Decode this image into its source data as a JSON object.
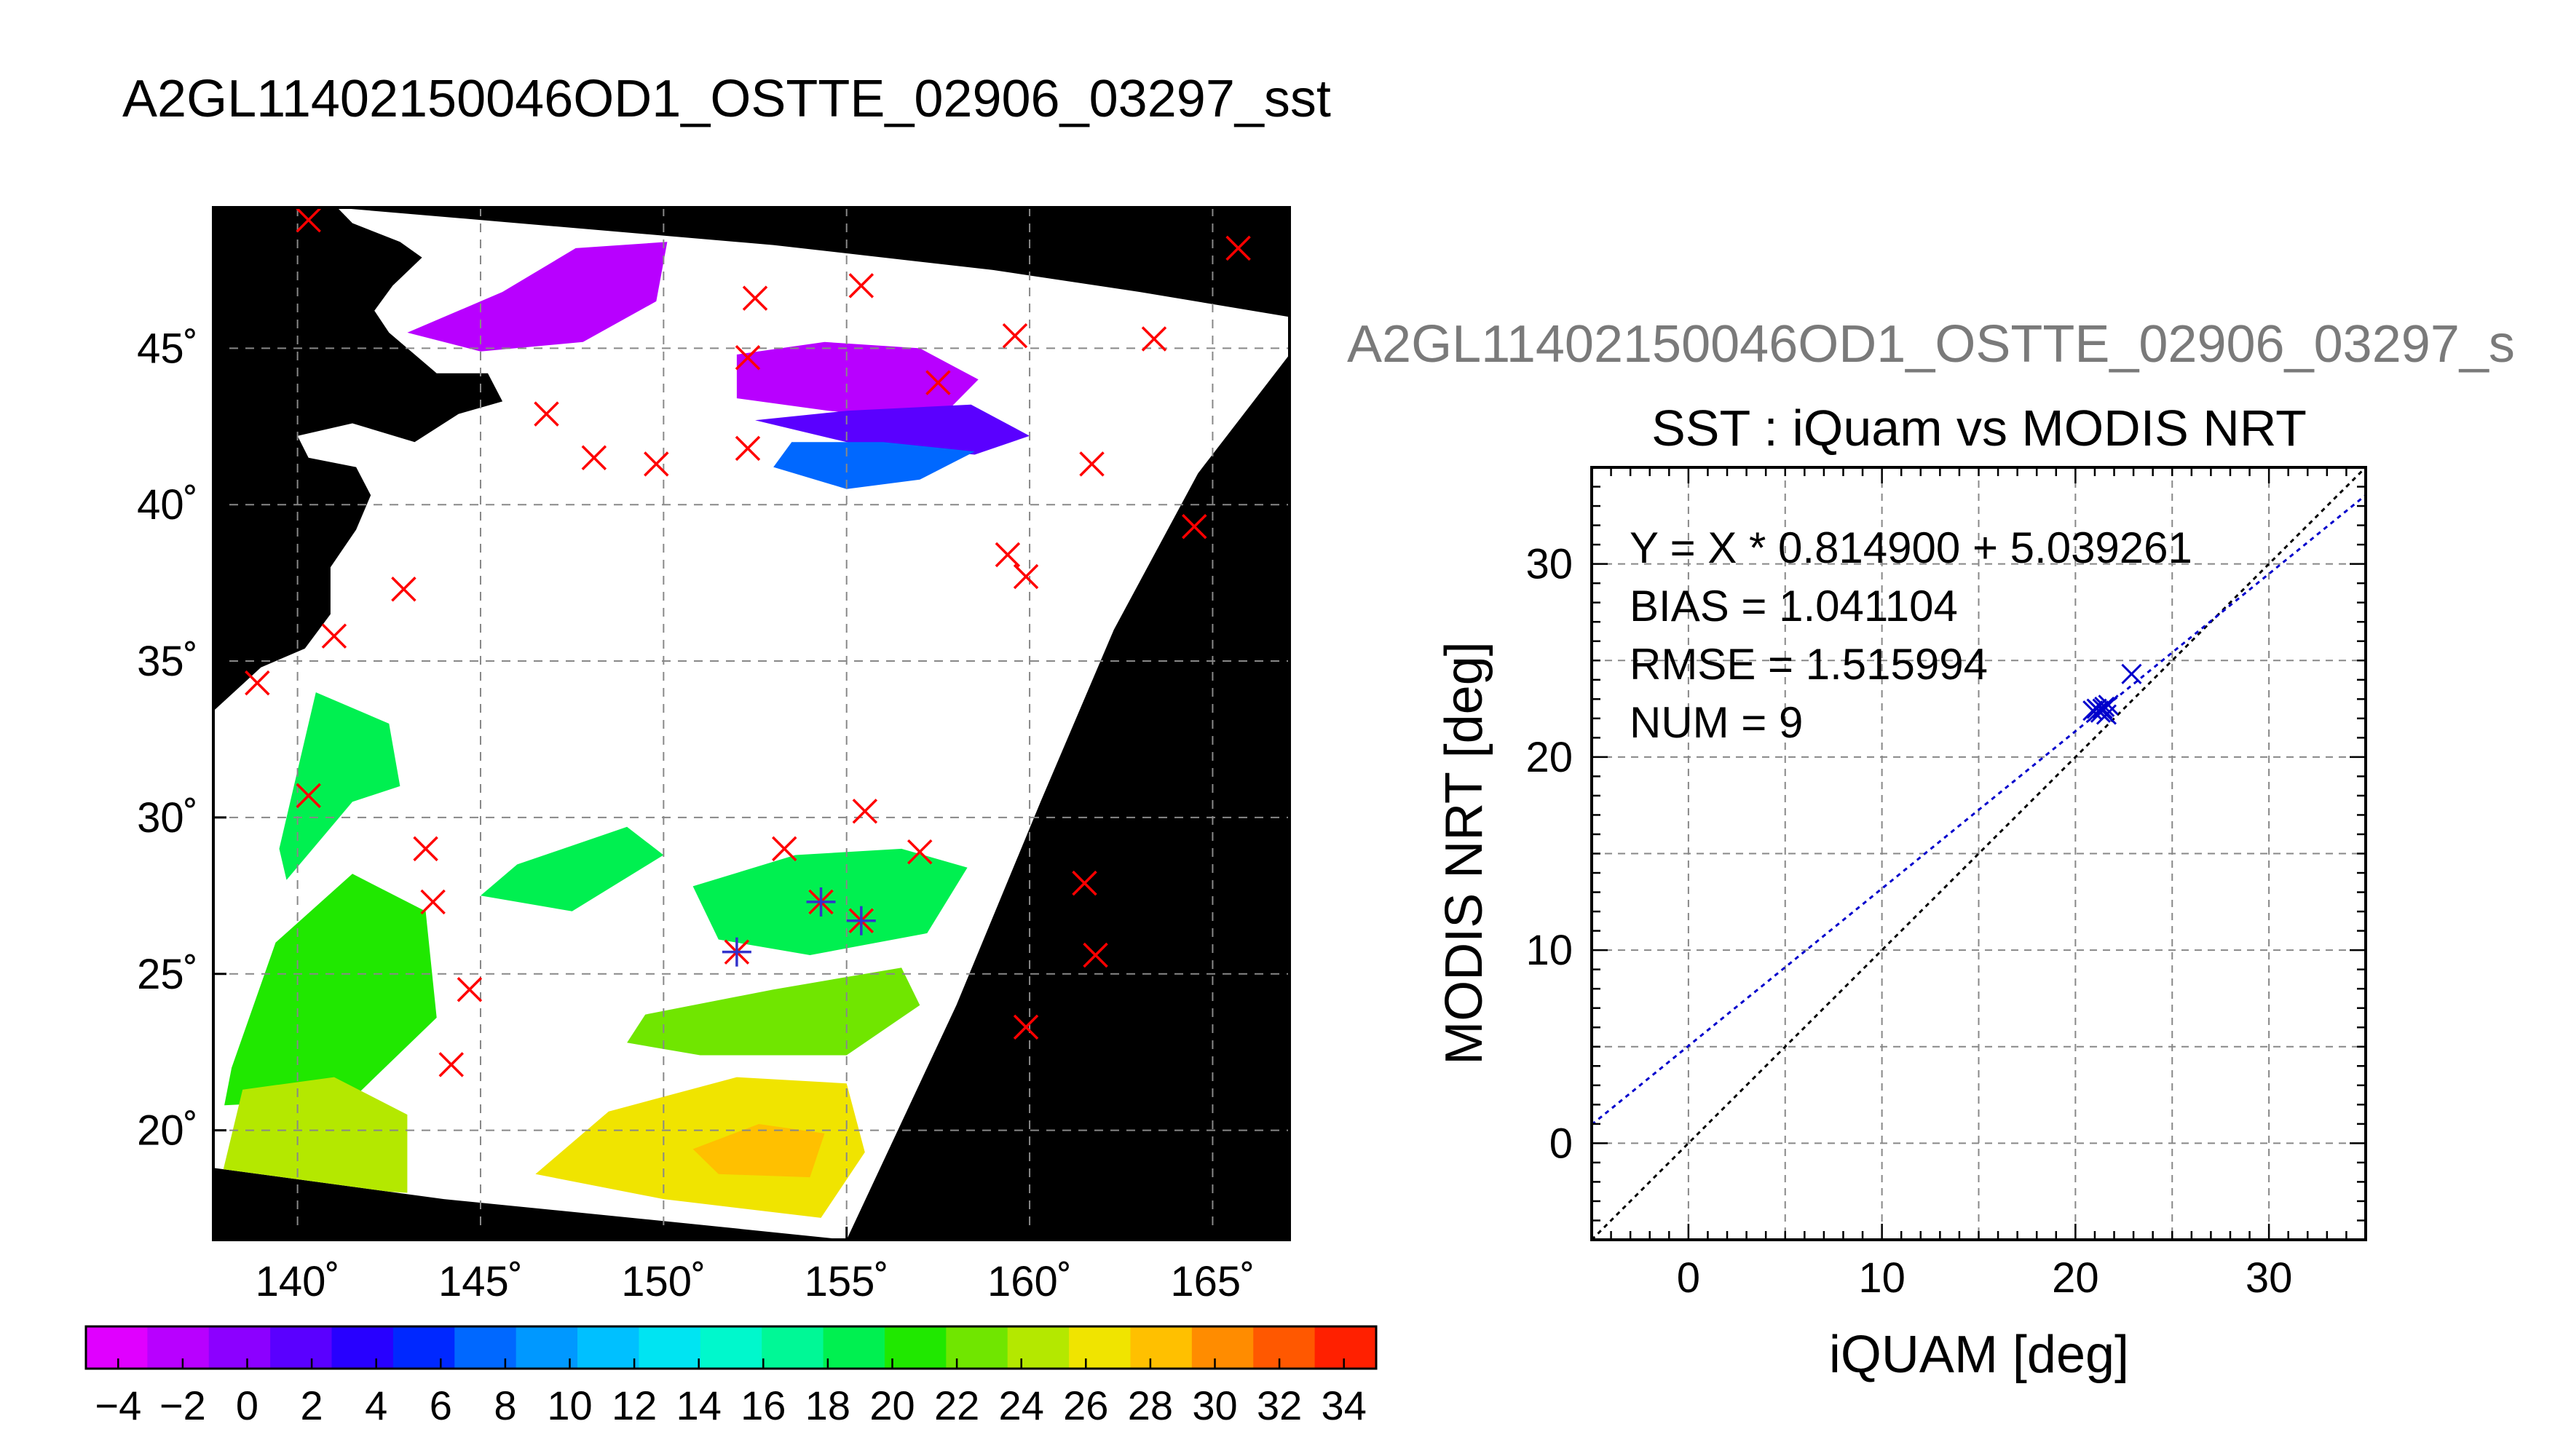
{
  "main_title": "A2GL11402150046OD1_OSTTE_02906_03297_sst",
  "secondary_title": "A2GL11402150046OD1_OSTTE_02906_03297_s",
  "colors": {
    "map_background": "#000000",
    "land": "#000000",
    "cloud": "#ffffff",
    "match_marker": "#ff0000",
    "valid_marker": "#3333cc",
    "fit_line": "#0000cc",
    "identity_line": "#000000",
    "grid": "#888888",
    "scatter_marker": "#0000cc"
  },
  "chart_data": [
    {
      "type": "heatmap",
      "title": "A2GL11402150046OD1_OSTTE_02906_03297_sst",
      "x_ticks": [
        140,
        145,
        150,
        155,
        160,
        165
      ],
      "x_tick_labels": [
        "140˚",
        "145˚",
        "150˚",
        "155˚",
        "160˚",
        "165˚"
      ],
      "y_ticks": [
        20,
        25,
        30,
        35,
        40,
        45
      ],
      "y_tick_labels": [
        "20˚",
        "25˚",
        "30˚",
        "35˚",
        "40˚",
        "45˚"
      ],
      "xlim": [
        137.7,
        167.1
      ],
      "ylim": [
        16.5,
        49.5
      ],
      "grid": true,
      "red_x_markers": [
        [
          140.3,
          49.1
        ],
        [
          165.7,
          48.2
        ],
        [
          155.4,
          47.0
        ],
        [
          152.5,
          46.6
        ],
        [
          159.6,
          45.4
        ],
        [
          163.4,
          45.3
        ],
        [
          152.3,
          44.7
        ],
        [
          157.5,
          43.9
        ],
        [
          146.8,
          42.9
        ],
        [
          148.1,
          41.5
        ],
        [
          149.8,
          41.3
        ],
        [
          152.3,
          41.8
        ],
        [
          161.7,
          41.3
        ],
        [
          164.5,
          39.3
        ],
        [
          159.4,
          38.4
        ],
        [
          159.9,
          37.7
        ],
        [
          142.9,
          37.3
        ],
        [
          141.0,
          35.8
        ],
        [
          138.9,
          34.3
        ],
        [
          140.3,
          30.7
        ],
        [
          143.5,
          29.0
        ],
        [
          143.7,
          27.3
        ],
        [
          153.3,
          29.0
        ],
        [
          155.5,
          30.2
        ],
        [
          157.0,
          28.9
        ],
        [
          161.5,
          27.9
        ],
        [
          161.8,
          25.6
        ],
        [
          144.7,
          24.5
        ],
        [
          159.9,
          23.3
        ],
        [
          144.2,
          22.1
        ]
      ],
      "valid_markers": [
        [
          152.0,
          25.7
        ],
        [
          154.3,
          27.3
        ],
        [
          155.4,
          26.7
        ]
      ],
      "colorbar": {
        "min": -5,
        "max": 35,
        "step": 2,
        "tick_values": [
          -4,
          -2,
          0,
          2,
          4,
          6,
          8,
          10,
          12,
          14,
          16,
          18,
          20,
          22,
          24,
          26,
          28,
          30,
          32,
          34
        ],
        "tick_labels": [
          "−4",
          "−2",
          "0",
          "2",
          "4",
          "6",
          "8",
          "10",
          "12",
          "14",
          "16",
          "18",
          "20",
          "22",
          "24",
          "26",
          "28",
          "30",
          "32",
          "34"
        ],
        "colors": [
          "#e000ff",
          "#b800ff",
          "#8c00ff",
          "#5a00ff",
          "#2800ff",
          "#0028ff",
          "#0068ff",
          "#0098ff",
          "#00c0ff",
          "#00e4f2",
          "#00f8cc",
          "#00f896",
          "#00f050",
          "#20e800",
          "#70e600",
          "#b4e800",
          "#f0e400",
          "#ffc000",
          "#ff8c00",
          "#ff5800",
          "#ff2000"
        ]
      },
      "sst_regions": [
        {
          "value": -3,
          "points": [
            [
              143.0,
              45.5
            ],
            [
              145.6,
              46.8
            ],
            [
              147.6,
              48.2
            ],
            [
              150.1,
              48.4
            ],
            [
              149.8,
              46.5
            ],
            [
              147.8,
              45.2
            ],
            [
              145.0,
              44.9
            ]
          ]
        },
        {
          "value": -2,
          "points": [
            [
              152.0,
              44.8
            ],
            [
              154.4,
              45.2
            ],
            [
              157.0,
              45.0
            ],
            [
              158.6,
              44.0
            ],
            [
              157.5,
              42.7
            ],
            [
              154.5,
              43.0
            ],
            [
              152.0,
              43.4
            ]
          ]
        },
        {
          "value": 2,
          "points": [
            [
              152.5,
              42.7
            ],
            [
              155.0,
              42.0
            ],
            [
              158.5,
              41.6
            ],
            [
              160.0,
              42.2
            ],
            [
              158.4,
              43.2
            ],
            [
              155.0,
              43.0
            ]
          ]
        },
        {
          "value": 7,
          "points": [
            [
              153.0,
              41.2
            ],
            [
              155.0,
              40.5
            ],
            [
              157.0,
              40.8
            ],
            [
              158.5,
              41.7
            ],
            [
              156.0,
              42.0
            ],
            [
              153.5,
              42.0
            ]
          ]
        },
        {
          "value": 19,
          "points": [
            [
              139.7,
              28.0
            ],
            [
              141.5,
              30.5
            ],
            [
              142.8,
              31.0
            ],
            [
              142.5,
              33.0
            ],
            [
              140.5,
              34.0
            ],
            [
              139.9,
              31.0
            ],
            [
              139.5,
              29.0
            ]
          ]
        },
        {
          "value": 20,
          "points": [
            [
              146.0,
              28.5
            ],
            [
              149.0,
              29.7
            ],
            [
              150.0,
              28.8
            ],
            [
              147.5,
              27.0
            ],
            [
              145.0,
              27.5
            ]
          ]
        },
        {
          "value": 20,
          "points": [
            [
              150.8,
              27.8
            ],
            [
              153.6,
              28.8
            ],
            [
              156.5,
              29.0
            ],
            [
              158.3,
              28.4
            ],
            [
              157.2,
              26.3
            ],
            [
              154.0,
              25.6
            ],
            [
              151.5,
              26.1
            ]
          ]
        },
        {
          "value": 22,
          "points": [
            [
              138.2,
              22.0
            ],
            [
              139.4,
              26.0
            ],
            [
              141.5,
              28.2
            ],
            [
              143.5,
              27.0
            ],
            [
              143.8,
              23.6
            ],
            [
              141.5,
              21.0
            ],
            [
              138.0,
              20.8
            ]
          ]
        },
        {
          "value": 23,
          "points": [
            [
              149.5,
              23.7
            ],
            [
              153.0,
              24.5
            ],
            [
              156.5,
              25.2
            ],
            [
              157.0,
              24.0
            ],
            [
              155.0,
              22.4
            ],
            [
              151.0,
              22.4
            ],
            [
              149.0,
              22.8
            ]
          ]
        },
        {
          "value": 26,
          "points": [
            [
              137.9,
              18.4
            ],
            [
              138.5,
              21.3
            ],
            [
              141.0,
              21.7
            ],
            [
              143.0,
              20.5
            ],
            [
              143.0,
              18.0
            ]
          ]
        },
        {
          "value": 28,
          "points": [
            [
              146.5,
              18.6
            ],
            [
              148.5,
              20.6
            ],
            [
              152.0,
              21.7
            ],
            [
              155.0,
              21.5
            ],
            [
              155.5,
              19.3
            ],
            [
              154.3,
              17.2
            ],
            [
              150.0,
              17.8
            ]
          ]
        },
        {
          "value": 29,
          "points": [
            [
              150.8,
              19.4
            ],
            [
              152.6,
              20.2
            ],
            [
              154.4,
              19.9
            ],
            [
              154.0,
              18.5
            ],
            [
              151.5,
              18.6
            ]
          ]
        }
      ]
    },
    {
      "type": "scatter",
      "title": "SST : iQuam vs MODIS NRT",
      "xlabel": "iQUAM [deg]",
      "ylabel": "MODIS NRT [deg]",
      "xlim": [
        -5,
        35
      ],
      "ylim": [
        -5,
        35
      ],
      "x_ticks": [
        0,
        10,
        20,
        30
      ],
      "y_ticks": [
        0,
        10,
        20,
        30
      ],
      "grid": true,
      "points": [
        {
          "x": 20.9,
          "y": 22.4
        },
        {
          "x": 21.1,
          "y": 22.5
        },
        {
          "x": 21.3,
          "y": 22.3
        },
        {
          "x": 21.5,
          "y": 22.6
        },
        {
          "x": 21.6,
          "y": 22.2
        },
        {
          "x": 21.7,
          "y": 22.7
        },
        {
          "x": 21.2,
          "y": 22.4
        },
        {
          "x": 22.9,
          "y": 24.3
        },
        {
          "x": 21.4,
          "y": 22.5
        }
      ],
      "fit": {
        "slope": 0.8149,
        "intercept": 5.039261
      },
      "identity": {
        "slope": 1,
        "intercept": 0
      },
      "annotations": [
        "Y = X * 0.814900 + 5.039261",
        "BIAS = 1.041104",
        "RMSE = 1.515994",
        "NUM = 9"
      ]
    }
  ]
}
